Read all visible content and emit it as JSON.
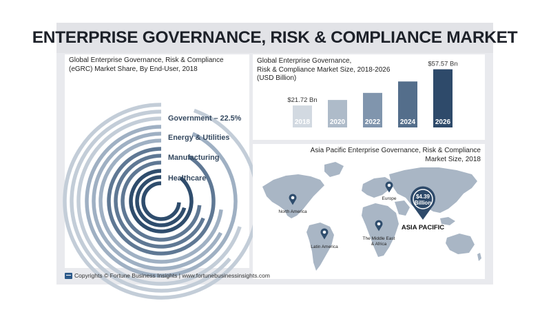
{
  "title": "ENTERPRISE GOVERNANCE, RISK & COMPLIANCE MARKET",
  "footer": "Copyrights © Fortune Business Insights | www.fortunebusinessinsights.com",
  "colors": {
    "navy": "#2f4d6d",
    "mid_blue": "#5f7894",
    "light_blue": "#9fb0c3",
    "pale_blue": "#c3cdd8",
    "map_land": "#a9b6c5"
  },
  "chart_data": [
    {
      "type": "radial-bar",
      "title_lines": [
        "Global Enterprise Governance, Risk & Compliance",
        "(eGRC) Market Share, By End-User, 2018"
      ],
      "legend": [
        "Government – 22.5%",
        "Energy & Utilities",
        "Manufacturing",
        "Healthcare"
      ],
      "categories": [
        "Government",
        "Energy & Utilities",
        "Manufacturing",
        "Healthcare"
      ],
      "values": [
        22.5,
        null,
        null,
        null
      ],
      "unit": "%"
    },
    {
      "type": "bar",
      "title_lines": [
        "Global Enterprise Governance,",
        "Risk & Compliance Market Size, 2018-2026",
        "(USD Billion)"
      ],
      "categories": [
        "2018",
        "2020",
        "2022",
        "2024",
        "2026"
      ],
      "values": [
        21.72,
        27.2,
        34.2,
        45.5,
        57.57
      ],
      "value_labels": [
        "$21.72 Bn",
        "",
        "",
        "",
        "$57.57 Bn"
      ],
      "ylim": [
        0,
        60
      ]
    },
    {
      "type": "map",
      "title_lines": [
        "Asia Pacific Enterprise Governance, Risk & Compliance",
        "Market Size, 2018"
      ],
      "regions": [
        {
          "name": "North America"
        },
        {
          "name": "Europe"
        },
        {
          "name": "Latin America"
        },
        {
          "name": "The Middle East",
          "name2": "& Africa"
        },
        {
          "name": "ASIA PACIFIC",
          "value_lines": [
            "$4.39",
            "Billion"
          ],
          "value": 4.39,
          "unit": "USD Billion"
        }
      ]
    }
  ]
}
